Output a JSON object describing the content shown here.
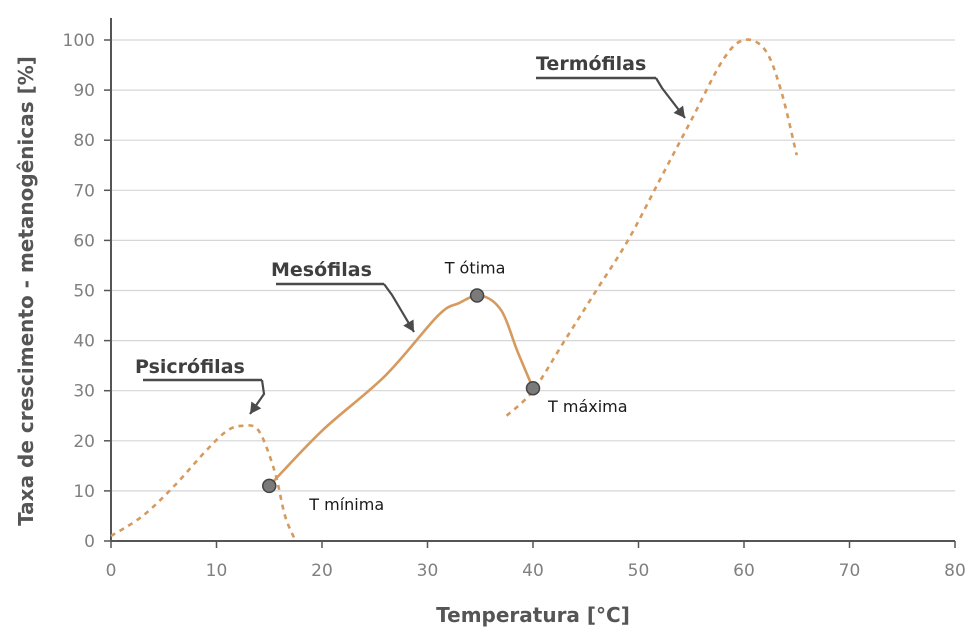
{
  "chart_data": {
    "type": "line",
    "xlabel": "Temperatura [°C]",
    "ylabel": "Taxa de crescimento - metanogênicas [%]",
    "xlim": [
      0,
      80
    ],
    "ylim": [
      0,
      100
    ],
    "x_ticks": [
      0,
      10,
      20,
      30,
      40,
      50,
      60,
      70,
      80
    ],
    "y_ticks": [
      0,
      10,
      20,
      30,
      40,
      50,
      60,
      70,
      80,
      90,
      100
    ],
    "grid": "horizontal",
    "colors": {
      "curve": "#d69a5e",
      "marker": "#7a7a7a",
      "axis": "#555555"
    },
    "series": [
      {
        "name": "Psicrófilas",
        "style": "dashed",
        "x": [
          0,
          3,
          6,
          9,
          11,
          12.5,
          14,
          15.5,
          16.5,
          17.5
        ],
        "y": [
          1,
          5,
          11,
          18,
          22,
          23,
          22,
          14,
          5,
          0
        ]
      },
      {
        "name": "Mesófilas",
        "style": "solid",
        "x": [
          15,
          20,
          26,
          31,
          33,
          35,
          37,
          38.5,
          40
        ],
        "y": [
          11,
          22,
          33,
          45,
          47.5,
          49,
          46,
          38,
          30.5
        ]
      },
      {
        "name": "Termófilas",
        "style": "dashed",
        "x": [
          37.5,
          40,
          43,
          46,
          49,
          52,
          55,
          58,
          60,
          62,
          63.5,
          65
        ],
        "y": [
          25,
          30,
          40,
          50,
          60,
          72,
          84,
          96,
          100,
          98,
          90,
          77
        ]
      }
    ],
    "annotations": {
      "groups": [
        {
          "text": "Psicrófilas",
          "x": 13.5,
          "y": 26
        },
        {
          "text": "Mesófilas",
          "x": 28.5,
          "y": 41
        },
        {
          "text": "Termófilas",
          "x": 54.5,
          "y": 84
        }
      ],
      "points": [
        {
          "text": "T mínima",
          "x": 15,
          "y": 11
        },
        {
          "text": "T ótima",
          "x": 34.7,
          "y": 49
        },
        {
          "text": "T máxima",
          "x": 40,
          "y": 30.5
        }
      ]
    }
  }
}
